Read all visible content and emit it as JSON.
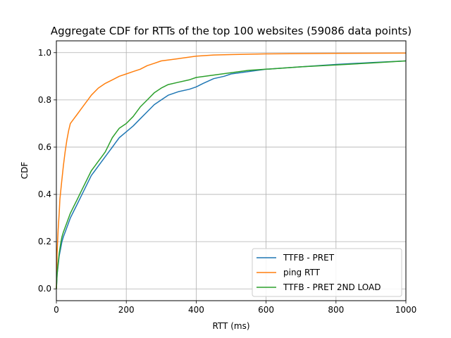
{
  "chart_data": {
    "type": "line",
    "title": "Aggregate CDF for RTTs of the top 100 websites (59086 data points)",
    "xlabel": "RTT (ms)",
    "ylabel": "CDF",
    "xlim": [
      0,
      1000
    ],
    "ylim": [
      -0.05,
      1.05
    ],
    "xticks": [
      0,
      200,
      400,
      600,
      800,
      1000
    ],
    "yticks": [
      0.0,
      0.2,
      0.4,
      0.6,
      0.8,
      1.0
    ],
    "xtick_labels": [
      "0",
      "200",
      "400",
      "600",
      "800",
      "1000"
    ],
    "ytick_labels": [
      "0.0",
      "0.2",
      "0.4",
      "0.6",
      "0.8",
      "1.0"
    ],
    "grid": true,
    "legend": "lower-right",
    "series": [
      {
        "name": "TTFB - PRET",
        "color": "#1f77b4",
        "x": [
          0,
          2,
          5,
          8,
          12,
          16,
          20,
          25,
          30,
          40,
          50,
          60,
          70,
          80,
          90,
          100,
          110,
          120,
          130,
          140,
          150,
          160,
          170,
          180,
          200,
          220,
          240,
          260,
          280,
          300,
          320,
          350,
          380,
          400,
          420,
          450,
          480,
          500,
          550,
          600,
          700,
          800,
          900,
          1000
        ],
        "y": [
          0.0,
          0.06,
          0.1,
          0.14,
          0.17,
          0.2,
          0.22,
          0.24,
          0.26,
          0.3,
          0.33,
          0.36,
          0.39,
          0.42,
          0.45,
          0.48,
          0.5,
          0.52,
          0.54,
          0.56,
          0.58,
          0.6,
          0.62,
          0.64,
          0.665,
          0.69,
          0.72,
          0.75,
          0.78,
          0.8,
          0.82,
          0.835,
          0.845,
          0.855,
          0.87,
          0.89,
          0.9,
          0.91,
          0.92,
          0.93,
          0.94,
          0.95,
          0.958,
          0.965
        ]
      },
      {
        "name": "ping RTT",
        "color": "#ff7f0e",
        "x": [
          0,
          2,
          5,
          8,
          10,
          15,
          20,
          25,
          30,
          35,
          40,
          50,
          60,
          70,
          80,
          90,
          100,
          120,
          140,
          160,
          180,
          200,
          220,
          240,
          260,
          280,
          300,
          350,
          400,
          450,
          500,
          600,
          700,
          800,
          1000
        ],
        "y": [
          0.0,
          0.15,
          0.25,
          0.32,
          0.38,
          0.45,
          0.52,
          0.58,
          0.63,
          0.67,
          0.7,
          0.72,
          0.74,
          0.76,
          0.78,
          0.8,
          0.82,
          0.85,
          0.87,
          0.885,
          0.9,
          0.91,
          0.92,
          0.93,
          0.945,
          0.955,
          0.965,
          0.975,
          0.985,
          0.99,
          0.992,
          0.995,
          0.996,
          0.997,
          0.998
        ]
      },
      {
        "name": "TTFB - PRET 2ND LOAD",
        "color": "#2ca02c",
        "x": [
          0,
          2,
          5,
          8,
          12,
          16,
          20,
          25,
          30,
          40,
          50,
          60,
          70,
          80,
          90,
          100,
          110,
          120,
          130,
          140,
          150,
          160,
          170,
          180,
          200,
          220,
          240,
          260,
          280,
          300,
          320,
          350,
          380,
          400,
          450,
          500,
          550,
          600,
          700,
          800,
          900,
          1000
        ],
        "y": [
          0.0,
          0.06,
          0.11,
          0.15,
          0.19,
          0.22,
          0.24,
          0.26,
          0.28,
          0.32,
          0.35,
          0.38,
          0.41,
          0.44,
          0.47,
          0.5,
          0.52,
          0.54,
          0.56,
          0.58,
          0.61,
          0.64,
          0.66,
          0.68,
          0.7,
          0.73,
          0.77,
          0.8,
          0.83,
          0.85,
          0.865,
          0.875,
          0.885,
          0.895,
          0.905,
          0.915,
          0.925,
          0.93,
          0.94,
          0.948,
          0.956,
          0.965
        ]
      }
    ]
  }
}
